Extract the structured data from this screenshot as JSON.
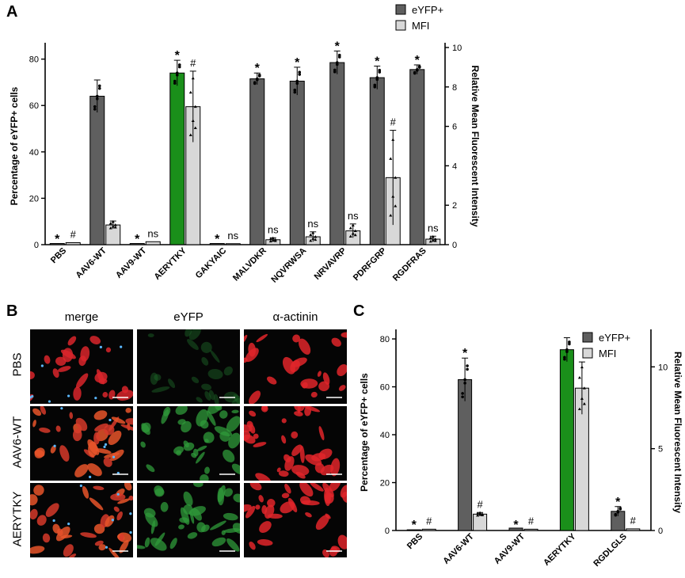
{
  "panels": {
    "a": "A",
    "b": "B",
    "c": "C"
  },
  "colors": {
    "eyfp": "#5f5f5f",
    "mfi": "#d8d8d8",
    "highlight": "#1a8f1a",
    "stroke": "#000000"
  },
  "microscopy": {
    "columns": [
      "merge",
      "eYFP",
      "α-actinin"
    ],
    "rows": [
      "PBS",
      "AAV6-WT",
      "AERYTKY"
    ]
  },
  "chart_data": [
    {
      "type": "bar",
      "panel": "A",
      "categories": [
        "PBS",
        "AAV6-WT",
        "AAV9-WT",
        "AERYTKY",
        "GAKYAIC",
        "MALVDKR",
        "NQVRWSA",
        "NRVAVRP",
        "PDRFGRP",
        "RGDFRAS"
      ],
      "ylabel": "Percentage of eYFP+ cells",
      "y2label": "Relative Mean Fluorescent Intensity",
      "ylim": [
        0,
        85
      ],
      "yticks": [
        0,
        20,
        40,
        60,
        80
      ],
      "y2lim": [
        0,
        10
      ],
      "y2ticks": [
        0,
        2,
        4,
        6,
        8,
        10
      ],
      "legend": {
        "position": "top-right",
        "entries": [
          "eYFP+",
          "MFI"
        ]
      },
      "highlight_category": "AERYTKY",
      "series": [
        {
          "name": "eYFP+",
          "axis": "left",
          "values": [
            0.5,
            64,
            0.5,
            74,
            0.5,
            71.5,
            70.5,
            78.5,
            72,
            75.5
          ],
          "errors": [
            0.3,
            7,
            0.3,
            5.5,
            0.3,
            2.5,
            6,
            5,
            5,
            2
          ]
        },
        {
          "name": "MFI",
          "axis": "right",
          "values": [
            0.1,
            1.0,
            0.15,
            7.0,
            0.05,
            0.25,
            0.4,
            0.7,
            3.4,
            0.28
          ],
          "errors": [
            0.05,
            0.2,
            0.05,
            1.8,
            0.03,
            0.1,
            0.25,
            0.35,
            2.4,
            0.15
          ]
        }
      ],
      "annotations": {
        "eYFP+": [
          "*",
          "",
          "*",
          "*",
          "*",
          "*",
          "*",
          "*",
          "*",
          "*"
        ],
        "MFI": [
          "#",
          "",
          "ns",
          "#",
          "ns",
          "ns",
          "ns",
          "ns",
          "#",
          "ns"
        ]
      }
    },
    {
      "type": "bar",
      "panel": "C",
      "categories": [
        "PBS",
        "AAV6-WT",
        "AAV9-WT",
        "AERYTKY",
        "RGDLGLS"
      ],
      "ylabel": "Percentage of eYFP+ cells",
      "y2label": "Relative Mean Fluorescent Intensity",
      "ylim": [
        0,
        82
      ],
      "yticks": [
        0,
        20,
        40,
        60,
        80
      ],
      "y2lim": [
        0,
        12
      ],
      "y2ticks": [
        0,
        5,
        10
      ],
      "legend": {
        "position": "top-right",
        "entries": [
          "eYFP+",
          "MFI"
        ]
      },
      "highlight_category": "AERYTKY",
      "series": [
        {
          "name": "eYFP+",
          "axis": "left",
          "values": [
            0.3,
            63,
            1,
            75.5,
            8
          ],
          "errors": [
            0.3,
            9,
            0.4,
            5,
            2
          ]
        },
        {
          "name": "MFI",
          "axis": "right",
          "values": [
            0.08,
            1.0,
            0.08,
            8.7,
            0.1
          ],
          "errors": [
            0.04,
            0.1,
            0.04,
            1.6,
            0.04
          ]
        }
      ],
      "annotations": {
        "eYFP+": [
          "*",
          "*",
          "*",
          "",
          "*"
        ],
        "MFI": [
          "#",
          "#",
          "#",
          "",
          "#"
        ]
      }
    }
  ]
}
